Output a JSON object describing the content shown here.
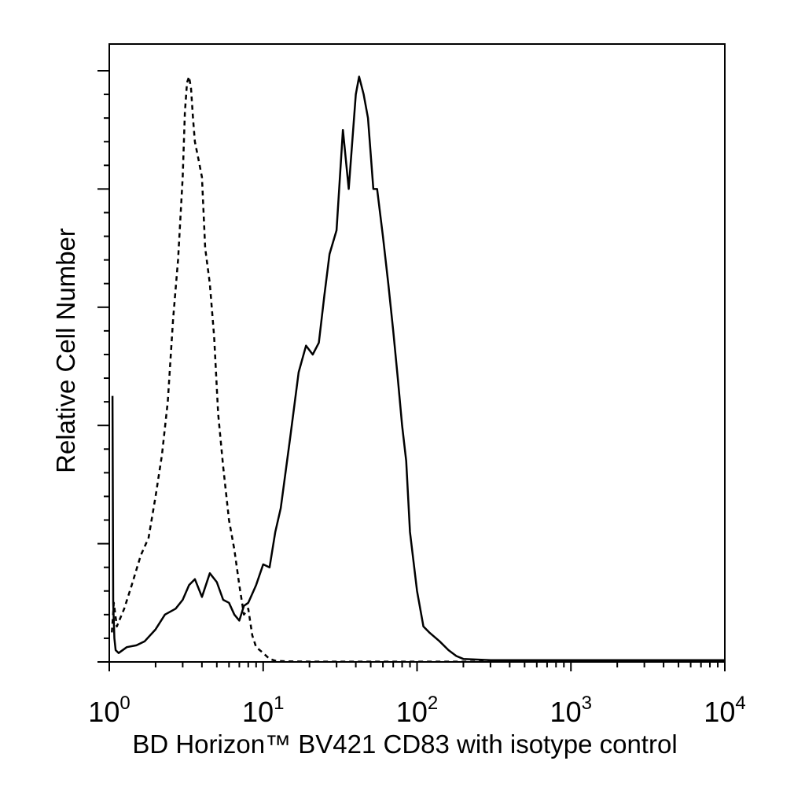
{
  "chart_data": {
    "type": "line",
    "title": "",
    "xlabel": "BD Horizon™ BV421 CD83 with isotype control",
    "ylabel": "Relative Cell Number",
    "x_scale": "log",
    "xlim": [
      1,
      10000
    ],
    "ylim": [
      0,
      100
    ],
    "x_ticks": [
      {
        "base": "10",
        "exp": "0"
      },
      {
        "base": "10",
        "exp": "1"
      },
      {
        "base": "10",
        "exp": "2"
      },
      {
        "base": "10",
        "exp": "3"
      },
      {
        "base": "10",
        "exp": "4"
      }
    ],
    "x_tick_values": [
      1,
      10,
      100,
      1000,
      10000
    ],
    "y_major_ticks": [
      0,
      20,
      40,
      60,
      80,
      100
    ],
    "legend": "none",
    "grid": false,
    "series": [
      {
        "style": "dashed",
        "x": [
          1.04,
          1.07,
          1.12,
          1.25,
          1.4,
          1.6,
          1.8,
          2.0,
          2.2,
          2.4,
          2.6,
          2.8,
          3.0,
          3.1,
          3.2,
          3.3,
          3.4,
          3.5,
          3.6,
          3.8,
          4.0,
          4.2,
          4.5,
          4.8,
          5.1,
          5.5,
          6.0,
          6.5,
          7.0,
          7.5,
          8.0,
          8.5,
          9.0,
          10,
          11,
          12,
          14,
          20,
          50,
          100,
          200,
          10000
        ],
        "y": [
          5,
          10,
          6,
          9,
          13,
          18,
          21,
          28,
          35,
          44,
          58,
          68,
          82,
          93,
          98,
          99,
          97,
          92,
          88,
          85,
          82,
          70,
          64,
          55,
          42,
          33,
          24,
          19,
          13,
          8,
          9,
          4.5,
          2.5,
          1.5,
          0.5,
          0.2,
          0.1,
          0.05,
          0.05,
          0.05,
          0.05,
          0.05
        ]
      },
      {
        "style": "solid",
        "x": [
          1.05,
          1.06,
          1.08,
          1.1,
          1.15,
          1.3,
          1.5,
          1.7,
          2.0,
          2.3,
          2.7,
          3.0,
          3.3,
          3.6,
          4.0,
          4.5,
          5.0,
          5.5,
          6.0,
          6.5,
          7.0,
          7.5,
          8.0,
          9.0,
          10,
          11,
          12,
          13,
          15,
          17,
          19,
          21,
          23,
          25,
          27,
          30,
          33,
          36,
          40,
          42,
          45,
          48,
          52,
          55,
          60,
          65,
          70,
          75,
          80,
          85,
          90,
          100,
          110,
          120,
          140,
          160,
          180,
          200,
          300,
          1000,
          10000
        ],
        "y": [
          45,
          10,
          4,
          2,
          1.5,
          2.5,
          2.8,
          3.5,
          5.5,
          8,
          9,
          10.5,
          13,
          14,
          11,
          15,
          13.5,
          10.5,
          10,
          8,
          7,
          9.5,
          10,
          13,
          16.5,
          16,
          22,
          26,
          38,
          49,
          53.5,
          52,
          54,
          62,
          69,
          73,
          90,
          80,
          96,
          99,
          96,
          92,
          80,
          80,
          72,
          64,
          56,
          48,
          40,
          34,
          22,
          12,
          6,
          5,
          3.5,
          2,
          1,
          0.5,
          0.3,
          0.3,
          0.3
        ]
      }
    ]
  }
}
